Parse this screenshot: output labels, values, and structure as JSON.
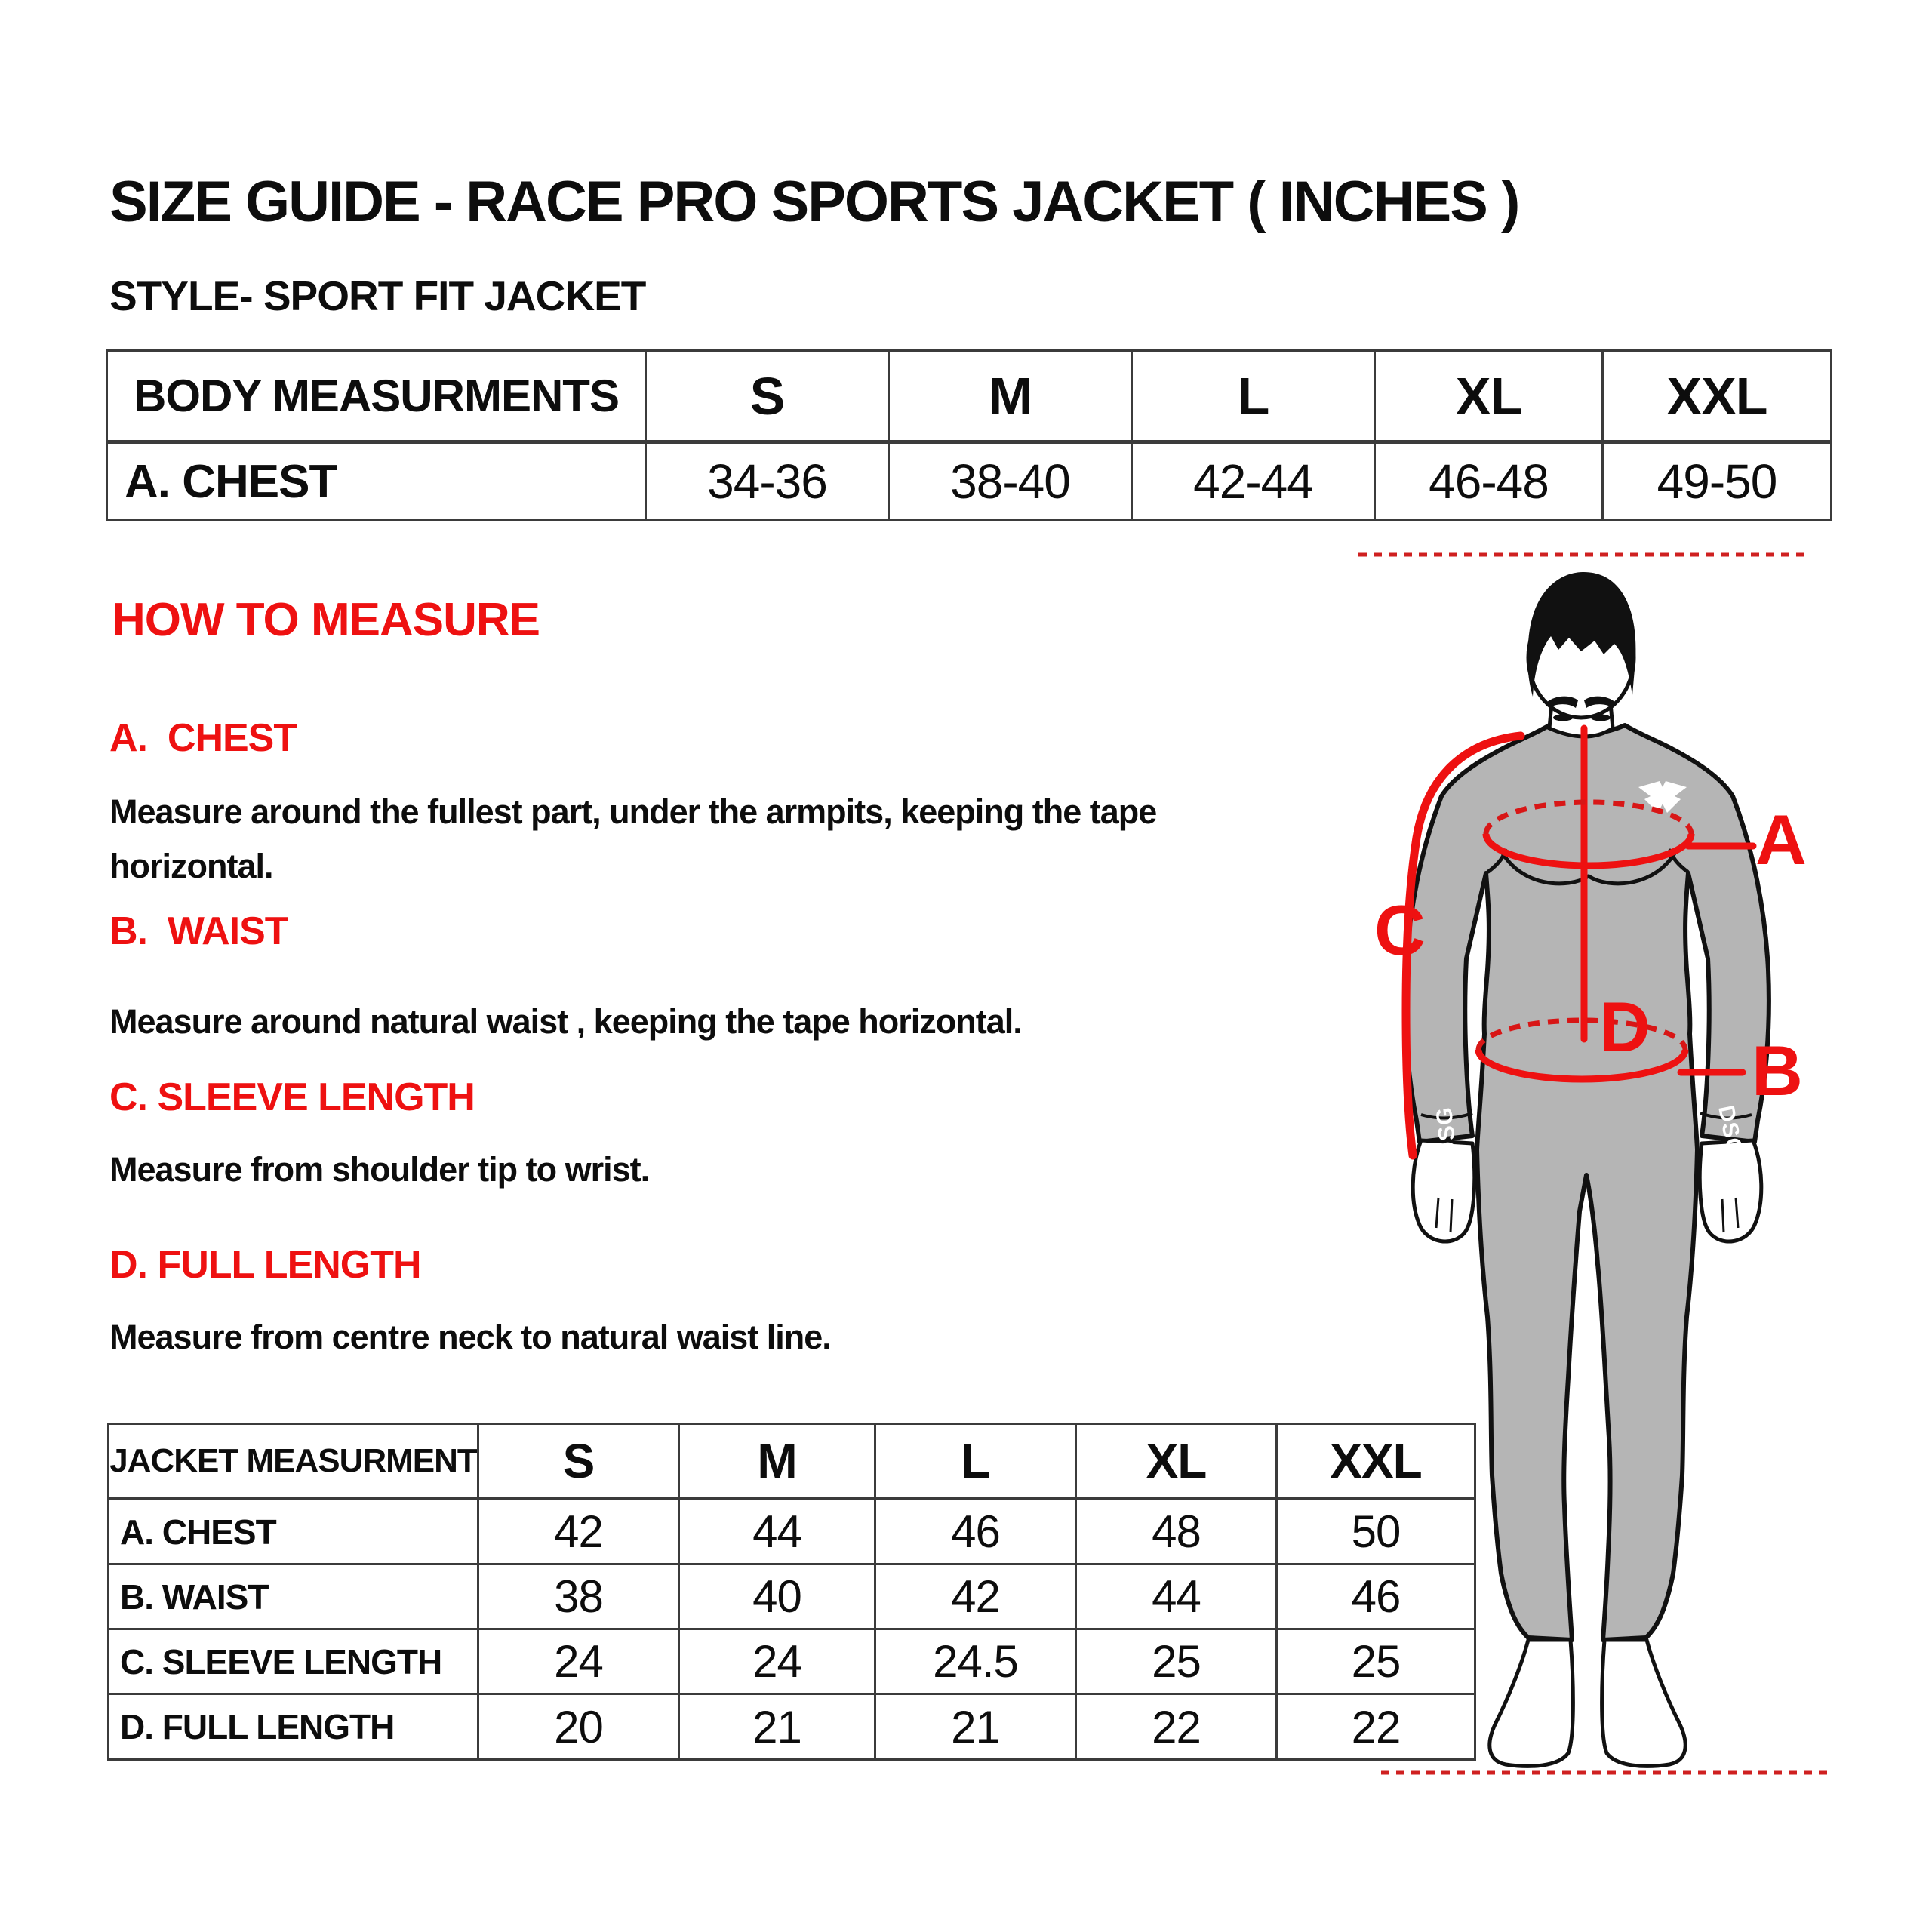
{
  "header": {
    "title": "SIZE GUIDE - RACE PRO SPORTS JACKET ( INCHES )",
    "style_line": "STYLE- SPORT FIT JACKET"
  },
  "body_table": {
    "columns": [
      "BODY MEASURMENTS",
      "S",
      "M",
      "L",
      "XL",
      "XXL"
    ],
    "rows": [
      [
        "A. CHEST",
        "34-36",
        "38-40",
        "42-44",
        "46-48",
        "49-50"
      ]
    ]
  },
  "how_to_measure": {
    "heading": "HOW TO MEASURE",
    "sections": [
      {
        "label": "A.  CHEST",
        "text": "Measure around the fullest part, under the armpits, keeping the tape\nhorizontal."
      },
      {
        "label": "B.  WAIST",
        "text": "Measure around natural waist , keeping the tape horizontal."
      },
      {
        "label": "C. SLEEVE LENGTH",
        "text": "Measure from shoulder tip to wrist."
      },
      {
        "label": "D. FULL LENGTH",
        "text": "Measure from centre neck to natural waist line."
      }
    ]
  },
  "jacket_table": {
    "columns": [
      "JACKET MEASURMENT",
      "S",
      "M",
      "L",
      "XL",
      "XXL"
    ],
    "rows": [
      [
        "A. CHEST",
        "42",
        "44",
        "46",
        "48",
        "50"
      ],
      [
        "B. WAIST",
        "38",
        "40",
        "42",
        "44",
        "46"
      ],
      [
        "C. SLEEVE LENGTH",
        "24",
        "24",
        "24.5",
        "25",
        "25"
      ],
      [
        "D. FULL LENGTH",
        "20",
        "21",
        "21",
        "22",
        "22"
      ]
    ]
  },
  "figure": {
    "marker_a": "A",
    "marker_b": "B",
    "marker_c": "C",
    "marker_d": "D",
    "cuff_brand": "DSG",
    "colors": {
      "annotation_red": "#ee1111",
      "dotted_red": "#cf2020",
      "body_gray": "#b5b5b5",
      "outline_black": "#111111"
    }
  }
}
